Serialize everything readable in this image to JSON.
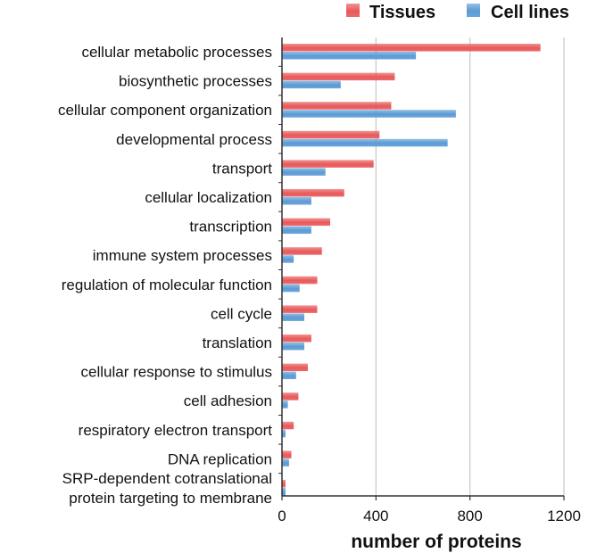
{
  "chart_data": {
    "type": "bar",
    "orientation": "horizontal",
    "categories": [
      "cellular metabolic processes",
      "biosynthetic processes",
      "cellular component organization",
      "developmental process",
      "transport",
      "cellular localization",
      "transcription",
      "immune system processes",
      "regulation of molecular function",
      "cell cycle",
      "translation",
      "cellular response to stimulus",
      "cell adhesion",
      "respiratory electron transport",
      "DNA replication",
      "SRP-dependent cotranslational protein targeting to membrane"
    ],
    "category_lines": [
      [
        "cellular metabolic processes"
      ],
      [
        "biosynthetic processes"
      ],
      [
        "cellular component organization"
      ],
      [
        "developmental process"
      ],
      [
        "transport"
      ],
      [
        "cellular localization"
      ],
      [
        "transcription"
      ],
      [
        "immune system processes"
      ],
      [
        "regulation of molecular function"
      ],
      [
        "cell cycle"
      ],
      [
        "translation"
      ],
      [
        "cellular response to stimulus"
      ],
      [
        "cell adhesion"
      ],
      [
        "respiratory electron transport"
      ],
      [
        "DNA replication"
      ],
      [
        "SRP-dependent cotranslational",
        "protein targeting to membrane"
      ]
    ],
    "series": [
      {
        "name": "Tissues",
        "color": "#e8595a",
        "values": [
          1100,
          480,
          465,
          415,
          390,
          265,
          205,
          170,
          150,
          150,
          125,
          110,
          70,
          50,
          40,
          15
        ]
      },
      {
        "name": "Cell lines",
        "color": "#5b9bd5",
        "values": [
          570,
          250,
          740,
          705,
          185,
          125,
          125,
          50,
          75,
          95,
          95,
          60,
          25,
          15,
          30,
          15
        ]
      }
    ],
    "xlabel": "number of proteins",
    "ylabel": "",
    "xlim": [
      0,
      1200
    ],
    "xticks": [
      0,
      400,
      800,
      1200
    ],
    "grid": true,
    "legend_position": "top-right"
  }
}
